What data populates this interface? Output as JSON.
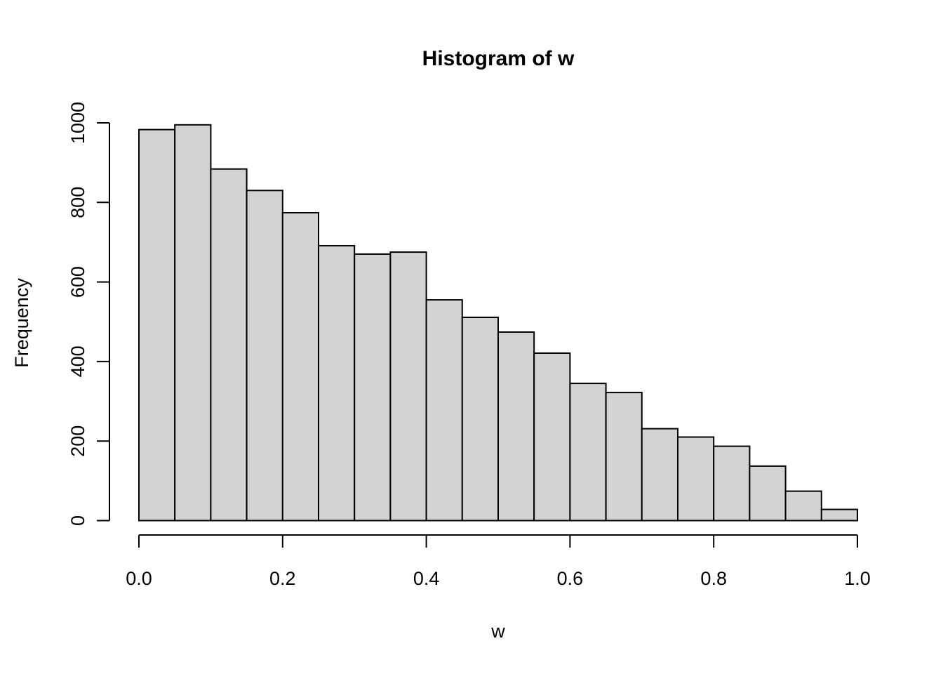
{
  "title": "Histogram of w",
  "colors": {
    "background": "#ffffff",
    "bar_fill": "#d3d3d3",
    "bar_stroke": "#000000",
    "axis": "#000000",
    "text": "#000000"
  },
  "chart_data": {
    "type": "bar",
    "subtype": "histogram",
    "title": "Histogram of w",
    "xlabel": "w",
    "ylabel": "Frequency",
    "bin_start": 0.0,
    "bin_width": 0.05,
    "values": [
      983,
      995,
      884,
      830,
      774,
      691,
      670,
      675,
      555,
      511,
      474,
      421,
      345,
      322,
      231,
      210,
      187,
      137,
      74,
      28
    ],
    "xlim": [
      0.0,
      1.0
    ],
    "ylim": [
      0,
      1000
    ],
    "x_ticks": [
      0.0,
      0.2,
      0.4,
      0.6,
      0.8,
      1.0
    ],
    "x_tick_labels": [
      "0.0",
      "0.2",
      "0.4",
      "0.6",
      "0.8",
      "1.0"
    ],
    "y_ticks": [
      0,
      200,
      400,
      600,
      800,
      1000
    ],
    "y_tick_labels": [
      "0",
      "200",
      "400",
      "600",
      "800",
      "1000"
    ],
    "grid": false,
    "legend": null
  }
}
